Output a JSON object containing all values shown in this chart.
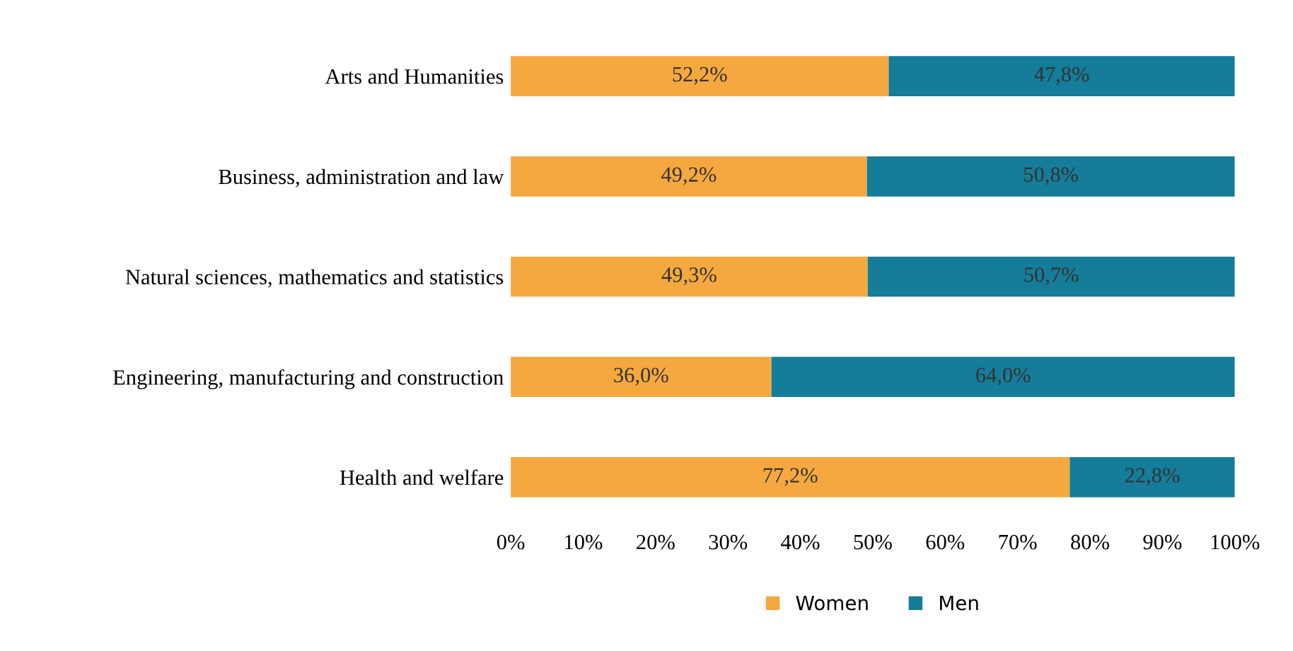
{
  "chart_data": {
    "type": "bar",
    "orientation": "horizontal",
    "stacked": true,
    "categories": [
      "Arts and Humanities",
      "Business, administration and law",
      "Natural sciences, mathematics and statistics",
      "Engineering, manufacturing and construction",
      "Health and welfare"
    ],
    "series": [
      {
        "name": "Women",
        "color": "#f5a83f",
        "values": [
          52.2,
          49.2,
          49.3,
          36.0,
          77.2
        ],
        "value_labels": [
          "52,2%",
          "49,2%",
          "49,3%",
          "36,0%",
          "77,2%"
        ]
      },
      {
        "name": "Men",
        "color": "#157c99",
        "values": [
          47.8,
          50.8,
          50.7,
          64.0,
          22.8
        ],
        "value_labels": [
          "47,8%",
          "50,8%",
          "50,7%",
          "64,0%",
          "22,8%"
        ]
      }
    ],
    "xlim": [
      0,
      100
    ],
    "xticks": [
      {
        "value": 0,
        "label": "0%"
      },
      {
        "value": 10,
        "label": "10%"
      },
      {
        "value": 20,
        "label": "20%"
      },
      {
        "value": 30,
        "label": "30%"
      },
      {
        "value": 40,
        "label": "40%"
      },
      {
        "value": 50,
        "label": "50%"
      },
      {
        "value": 60,
        "label": "60%"
      },
      {
        "value": 70,
        "label": "70%"
      },
      {
        "value": 80,
        "label": "80%"
      },
      {
        "value": 90,
        "label": "90%"
      },
      {
        "value": 100,
        "label": "100%"
      }
    ],
    "legend": "bottom",
    "grid": false
  }
}
